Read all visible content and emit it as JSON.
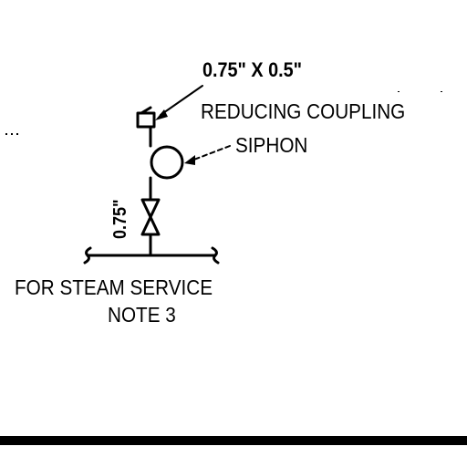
{
  "labels": {
    "fitting_size": "0.75\" X 0.5\"",
    "reducing_coupling": "REDUCING COUPLING",
    "siphon": "SIPHON",
    "pipe_size": "0.75\"",
    "service": "FOR STEAM SERVICE",
    "note": "NOTE 3"
  },
  "colors": {
    "ink": "#000000",
    "background": "#ffffff"
  }
}
